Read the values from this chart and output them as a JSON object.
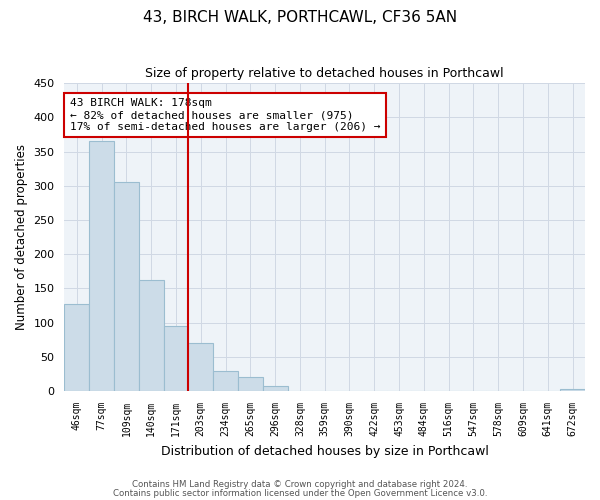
{
  "title": "43, BIRCH WALK, PORTHCAWL, CF36 5AN",
  "subtitle": "Size of property relative to detached houses in Porthcawl",
  "xlabel": "Distribution of detached houses by size in Porthcawl",
  "ylabel": "Number of detached properties",
  "bin_labels": [
    "46sqm",
    "77sqm",
    "109sqm",
    "140sqm",
    "171sqm",
    "203sqm",
    "234sqm",
    "265sqm",
    "296sqm",
    "328sqm",
    "359sqm",
    "390sqm",
    "422sqm",
    "453sqm",
    "484sqm",
    "516sqm",
    "547sqm",
    "578sqm",
    "609sqm",
    "641sqm",
    "672sqm"
  ],
  "bar_heights": [
    128,
    365,
    305,
    163,
    95,
    70,
    30,
    20,
    8,
    0,
    0,
    0,
    0,
    0,
    0,
    0,
    0,
    0,
    0,
    0,
    3
  ],
  "bar_color": "#ccdce8",
  "bar_edge_color": "#9bbdd0",
  "vline_color": "#cc0000",
  "vline_x": 4.5,
  "annotation_text": "43 BIRCH WALK: 178sqm\n← 82% of detached houses are smaller (975)\n17% of semi-detached houses are larger (206) →",
  "annotation_box_color": "#ffffff",
  "annotation_box_edge_color": "#cc0000",
  "ylim": [
    0,
    450
  ],
  "yticks": [
    0,
    50,
    100,
    150,
    200,
    250,
    300,
    350,
    400,
    450
  ],
  "grid_color": "#d0d8e4",
  "footnote1": "Contains HM Land Registry data © Crown copyright and database right 2024.",
  "footnote2": "Contains public sector information licensed under the Open Government Licence v3.0."
}
